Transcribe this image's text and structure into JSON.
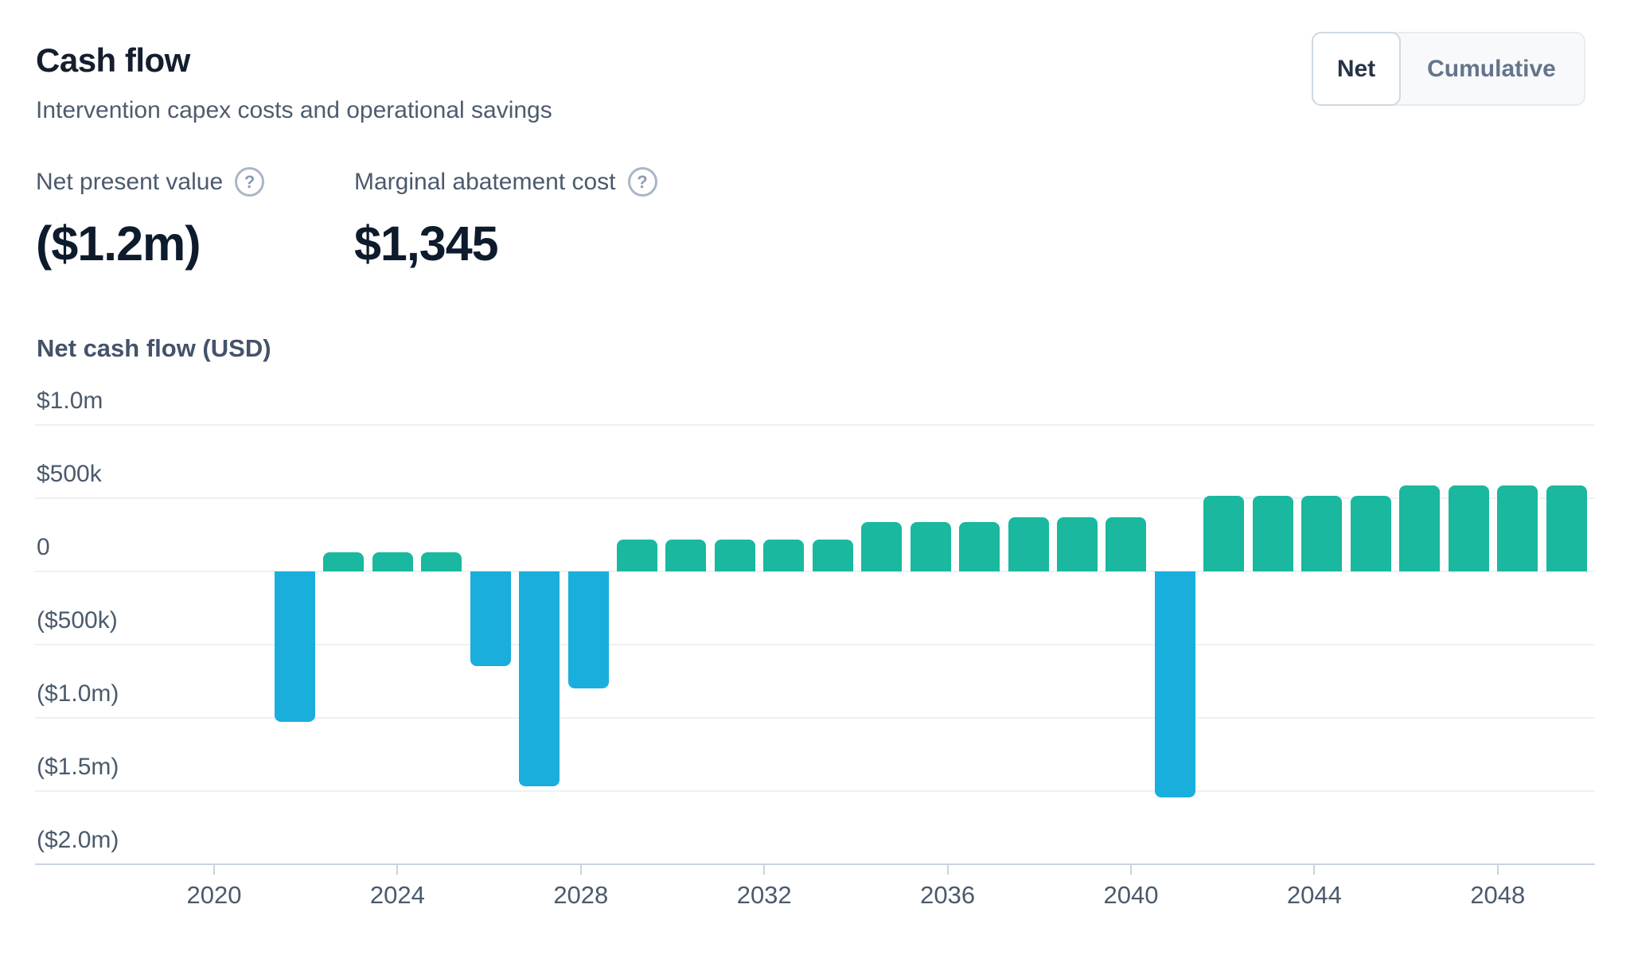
{
  "header": {
    "title": "Cash flow",
    "subtitle": "Intervention capex costs and operational savings"
  },
  "toggle": {
    "options": [
      "Net",
      "Cumulative"
    ],
    "selected": "Net"
  },
  "stats": [
    {
      "label": "Net present value",
      "value": "($1.2m)",
      "help_icon_glyph": "?"
    },
    {
      "label": "Marginal abatement cost",
      "value": "$1,345",
      "help_icon_glyph": "?"
    }
  ],
  "chart_data": {
    "type": "bar",
    "title": "Net cash flow (USD)",
    "xlabel": "",
    "ylabel": "Net cash flow (USD)",
    "x": [
      2023,
      2024,
      2025,
      2026,
      2027,
      2028,
      2029,
      2030,
      2031,
      2032,
      2033,
      2034,
      2035,
      2036,
      2037,
      2038,
      2039,
      2040,
      2041,
      2042,
      2043,
      2044,
      2045,
      2046,
      2047,
      2048,
      2049
    ],
    "values": [
      -1025000,
      130000,
      130000,
      130000,
      -645000,
      -1470000,
      -800000,
      220000,
      220000,
      220000,
      220000,
      220000,
      335000,
      335000,
      335000,
      370000,
      370000,
      370000,
      -1545000,
      515000,
      515000,
      515000,
      515000,
      585000,
      585000,
      585000,
      585000
    ],
    "ylim": [
      -2000000,
      1000000
    ],
    "grid": true,
    "legend": "none",
    "y_ticks": [
      {
        "label": "$1.0m",
        "value": 1000000
      },
      {
        "label": "$500k",
        "value": 500000
      },
      {
        "label": "0",
        "value": 0
      },
      {
        "label": "($500k)",
        "value": -500000
      },
      {
        "label": "($1.0m)",
        "value": -1000000
      },
      {
        "label": "($1.5m)",
        "value": -1500000
      },
      {
        "label": "($2.0m)",
        "value": -2000000
      }
    ],
    "x_tick_years": [
      2020,
      2024,
      2028,
      2032,
      2036,
      2040,
      2044,
      2048
    ],
    "positive_color": "#19b89f",
    "negative_color": "#1aaedd",
    "gridline_color": "#edf1f6",
    "axis_color": "#c9d4e0"
  }
}
